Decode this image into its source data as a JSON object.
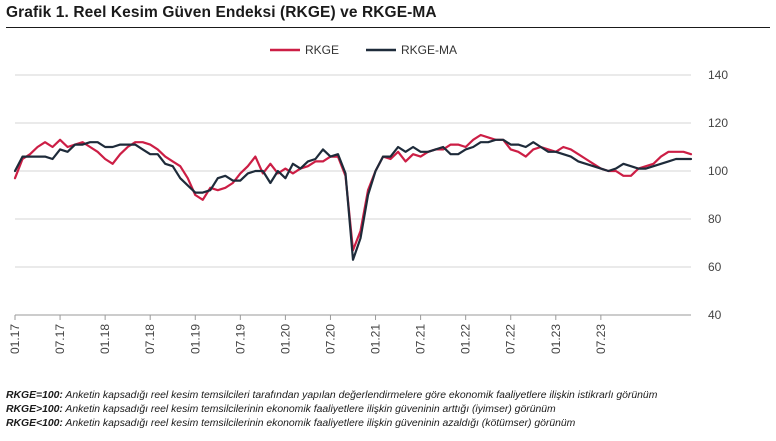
{
  "title": "Grafik 1. Reel Kesim Güven Endeksi (RKGE) ve RKGE-MA",
  "colors": {
    "rkge": "#cc1e45",
    "rkge_ma": "#1e2b3a",
    "grid": "#d4d4d4",
    "axis": "#9a9a9a"
  },
  "notes": [
    {
      "key": "RKGE=100:",
      "text": " Anketin kapsadığı reel kesim temsilcileri tarafından yapılan değerlendirmelere göre ekonomik faaliyetlere ilişkin istikrarlı görünüm"
    },
    {
      "key": "RKGE>100:",
      "text": " Anketin kapsadığı reel kesim temsilcilerinin ekonomik faaliyetlere ilişkin güveninin arttığı (iyimser) görünüm"
    },
    {
      "key": "RKGE<100:",
      "text": " Anketin kapsadığı reel kesim temsilcilerinin ekonomik faaliyetlere ilişkin güveninin azaldığı (kötümser) görünüm"
    }
  ],
  "chart_data": {
    "type": "line",
    "x_start": "01.17",
    "x_labels": [
      "01.17",
      "07.17",
      "01.18",
      "07.18",
      "01.19",
      "07.19",
      "01.20",
      "07.20",
      "01.21",
      "07.21",
      "01.22",
      "07.22",
      "01.23",
      "07.23"
    ],
    "ylim": [
      40,
      140
    ],
    "yticks": [
      40,
      60,
      80,
      100,
      120,
      140
    ],
    "y_axis_side": "right",
    "legend_position": "top-center",
    "grid": true,
    "series": [
      {
        "name": "RKGE",
        "values": [
          97,
          105,
          107,
          110,
          112,
          110,
          113,
          110,
          111,
          112,
          110,
          108,
          105,
          103,
          107,
          110,
          112,
          112,
          111,
          109,
          106,
          104,
          102,
          97,
          90,
          88,
          93,
          92,
          93,
          95,
          99,
          102,
          106,
          99,
          103,
          99,
          101,
          99,
          101,
          102,
          104,
          104,
          106,
          106,
          98,
          67,
          75,
          92,
          100,
          106,
          105,
          108,
          104,
          107,
          106,
          108,
          109,
          109,
          111,
          111,
          110,
          113,
          115,
          114,
          113,
          113,
          109,
          108,
          106,
          109,
          110,
          109,
          108,
          110,
          109,
          107,
          105,
          103,
          101,
          100,
          100,
          98,
          98,
          101,
          102,
          103,
          106,
          108,
          108,
          108,
          107
        ]
      },
      {
        "name": "RKGE-MA",
        "values": [
          100,
          106,
          106,
          106,
          106,
          105,
          109,
          108,
          111,
          111,
          112,
          112,
          110,
          110,
          111,
          111,
          111,
          109,
          107,
          107,
          103,
          102,
          97,
          94,
          91,
          91,
          92,
          97,
          98,
          96,
          96,
          99,
          100,
          100,
          95,
          100,
          97,
          103,
          101,
          104,
          105,
          109,
          106,
          107,
          99,
          63,
          72,
          90,
          100,
          106,
          106,
          110,
          108,
          110,
          108,
          108,
          109,
          110,
          107,
          107,
          109,
          110,
          112,
          112,
          113,
          113,
          111,
          111,
          110,
          112,
          110,
          108,
          108,
          107,
          106,
          104,
          103,
          102,
          101,
          100,
          101,
          103,
          102,
          101,
          101,
          102,
          103,
          104,
          105,
          105,
          105
        ]
      }
    ]
  }
}
